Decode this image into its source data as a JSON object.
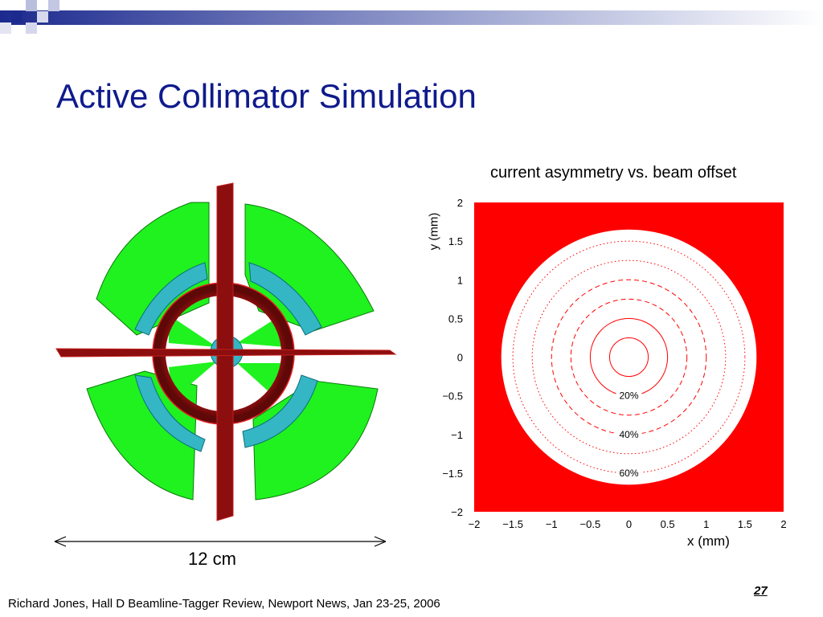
{
  "slide": {
    "title": "Active Collimator Simulation",
    "scale_label": "12 cm",
    "page_number": "27",
    "footer": "Richard Jones, Hall D Beamline-Tagger Review, Newport News, Jan 23-25, 2006"
  },
  "colors": {
    "title": "#0e1a8c",
    "bar_dark": "#1c2a8e",
    "collimator_green": "#1ff21f",
    "collimator_cyan": "#35b6c4",
    "collimator_frame": "#8c0e0e",
    "plot_background": "#ff0000",
    "plot_disk": "#ffffff",
    "contour": "#ff0000"
  },
  "chart_data": {
    "type": "contour",
    "title": "current asymmetry vs. beam offset",
    "xlabel": "x (mm)",
    "ylabel": "y (mm)",
    "xlim": [
      -2,
      2
    ],
    "ylim": [
      -2,
      2
    ],
    "x_ticks": [
      -2,
      -1.5,
      -1,
      -0.5,
      0,
      0.5,
      1,
      1.5,
      2
    ],
    "y_ticks": [
      -2,
      -1.5,
      -1,
      -0.5,
      0,
      0.5,
      1,
      1.5,
      2
    ],
    "x_tick_labels": [
      "−2",
      "−1.5",
      "−1",
      "−0.5",
      "0",
      "0.5",
      "1",
      "1.5",
      "2"
    ],
    "y_tick_labels": [
      "−2",
      "−1.5",
      "−1",
      "−0.5",
      "0",
      "0.5",
      "1",
      "1.5",
      "2"
    ],
    "disk_radius": 1.65,
    "contours": [
      {
        "radius": 0.25,
        "style": "solid",
        "label": ""
      },
      {
        "radius": 0.5,
        "style": "solid",
        "label": "20%"
      },
      {
        "radius": 0.75,
        "style": "dashed",
        "label": ""
      },
      {
        "radius": 1.0,
        "style": "dashed",
        "label": "40%"
      },
      {
        "radius": 1.25,
        "style": "dotted",
        "label": ""
      },
      {
        "radius": 1.5,
        "style": "dotted",
        "label": "60%"
      }
    ],
    "grid": false,
    "legend": "none"
  }
}
